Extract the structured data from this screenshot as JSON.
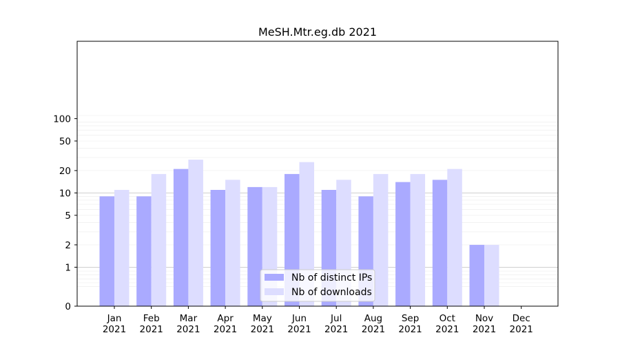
{
  "chart_data": {
    "type": "bar",
    "title": "MeSH.Mtr.eg.db 2021",
    "xlabel": "",
    "ylabel": "",
    "yscale": "symlog",
    "ylim": [
      0,
      110
    ],
    "yticks": [
      0,
      1,
      2,
      5,
      10,
      20,
      50,
      100
    ],
    "grid": true,
    "legend_position": "lower-center",
    "categories": [
      {
        "month": "Jan",
        "year": "2021"
      },
      {
        "month": "Feb",
        "year": "2021"
      },
      {
        "month": "Mar",
        "year": "2021"
      },
      {
        "month": "Apr",
        "year": "2021"
      },
      {
        "month": "May",
        "year": "2021"
      },
      {
        "month": "Jun",
        "year": "2021"
      },
      {
        "month": "Jul",
        "year": "2021"
      },
      {
        "month": "Aug",
        "year": "2021"
      },
      {
        "month": "Sep",
        "year": "2021"
      },
      {
        "month": "Oct",
        "year": "2021"
      },
      {
        "month": "Nov",
        "year": "2021"
      },
      {
        "month": "Dec",
        "year": "2021"
      }
    ],
    "series": [
      {
        "name": "Nb of distinct IPs",
        "color": "#aaaaff",
        "values": [
          9,
          9,
          21,
          11,
          12,
          18,
          11,
          9,
          14,
          15,
          2,
          0
        ]
      },
      {
        "name": "Nb of downloads",
        "color": "#ddddff",
        "values": [
          11,
          18,
          28,
          15,
          12,
          26,
          15,
          18,
          18,
          21,
          2,
          0
        ]
      }
    ]
  }
}
